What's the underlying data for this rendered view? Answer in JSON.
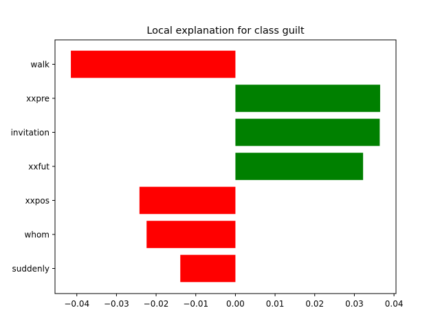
{
  "chart_data": {
    "type": "bar",
    "orientation": "horizontal",
    "title": "Local explanation for class guilt",
    "xlabel": "",
    "ylabel": "",
    "categories": [
      "walk",
      "xxpre",
      "invitation",
      "xxfut",
      "xxpos",
      "whom",
      "suddenly"
    ],
    "values": [
      -0.0415,
      0.0365,
      0.0364,
      0.0322,
      -0.0242,
      -0.0224,
      -0.0139
    ],
    "xlim": [
      -0.0455,
      0.0405
    ],
    "xticks": [
      -0.04,
      -0.03,
      -0.02,
      -0.01,
      0.0,
      0.01,
      0.02,
      0.03,
      0.04
    ],
    "xtick_labels": [
      "−0.04",
      "−0.03",
      "−0.02",
      "−0.01",
      "0.00",
      "0.01",
      "0.02",
      "0.03",
      "0.04"
    ],
    "grid": false,
    "colors": {
      "positive": "#008000",
      "negative": "#ff0000"
    }
  }
}
